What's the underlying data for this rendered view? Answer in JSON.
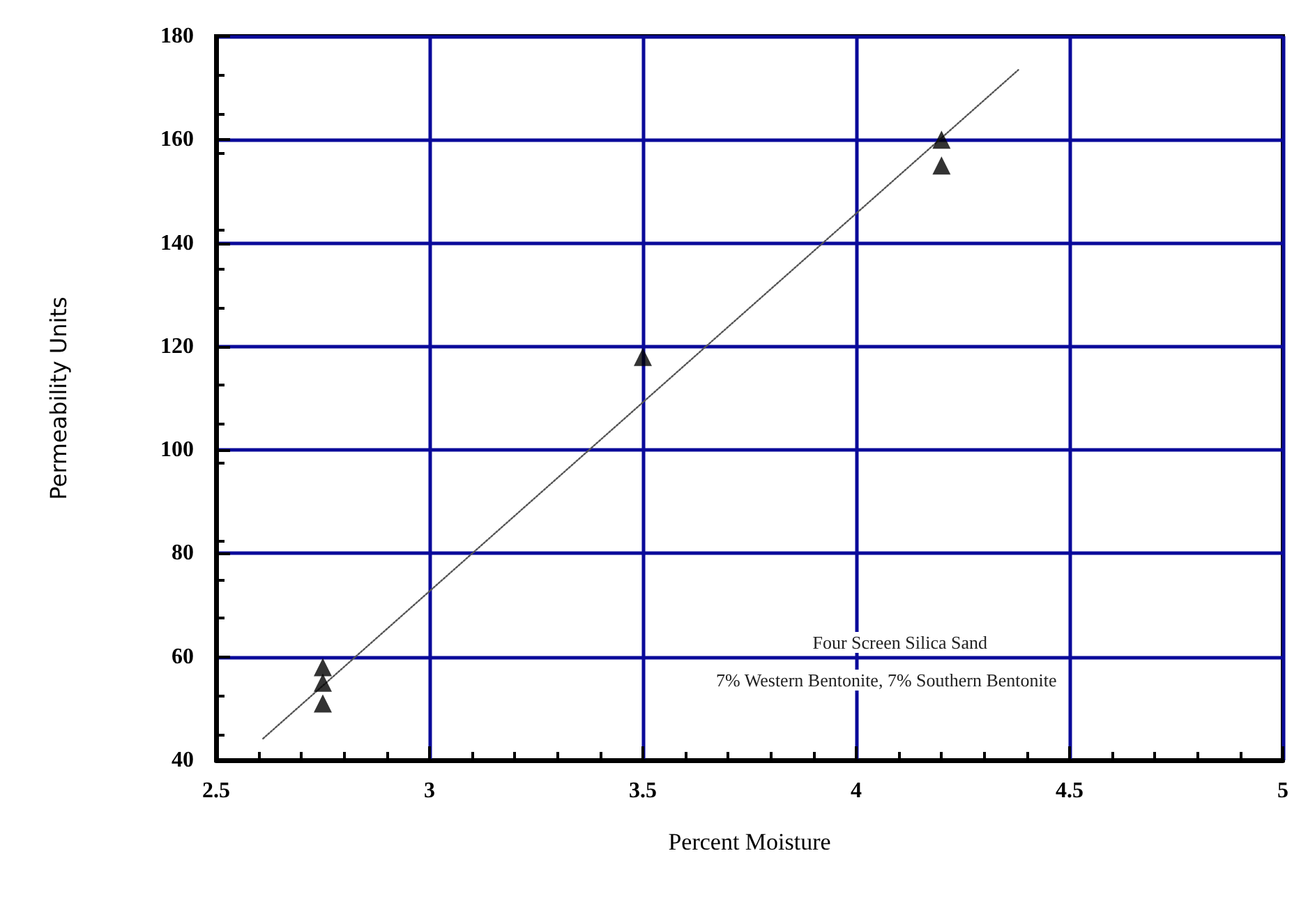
{
  "chart_data": {
    "type": "scatter",
    "xlabel": "Percent Moisture",
    "ylabel": "Permeability Units",
    "annotations": [
      "Four Screen Silica Sand",
      "7% Western Bentonite, 7% Southern Bentonite"
    ],
    "xlim": [
      2.5,
      5
    ],
    "xticks": [
      2.5,
      3,
      3.5,
      4,
      4.5,
      5
    ],
    "ylim": [
      40,
      180
    ],
    "yticks": [
      40,
      60,
      80,
      100,
      120,
      140,
      160,
      180
    ],
    "grid": true,
    "marker": "triangle",
    "series": [
      {
        "color": "#000000",
        "x": [
          2.75,
          2.75,
          2.75,
          3.5,
          4.2,
          4.2
        ],
        "values": [
          58,
          55,
          51,
          118,
          160,
          155
        ]
      },
      {
        "type": "line",
        "color": "#555555",
        "marker": "none",
        "line_style": "dotted",
        "x": [
          2.61,
          4.38
        ],
        "values": [
          44.2,
          173.5
        ]
      }
    ]
  }
}
